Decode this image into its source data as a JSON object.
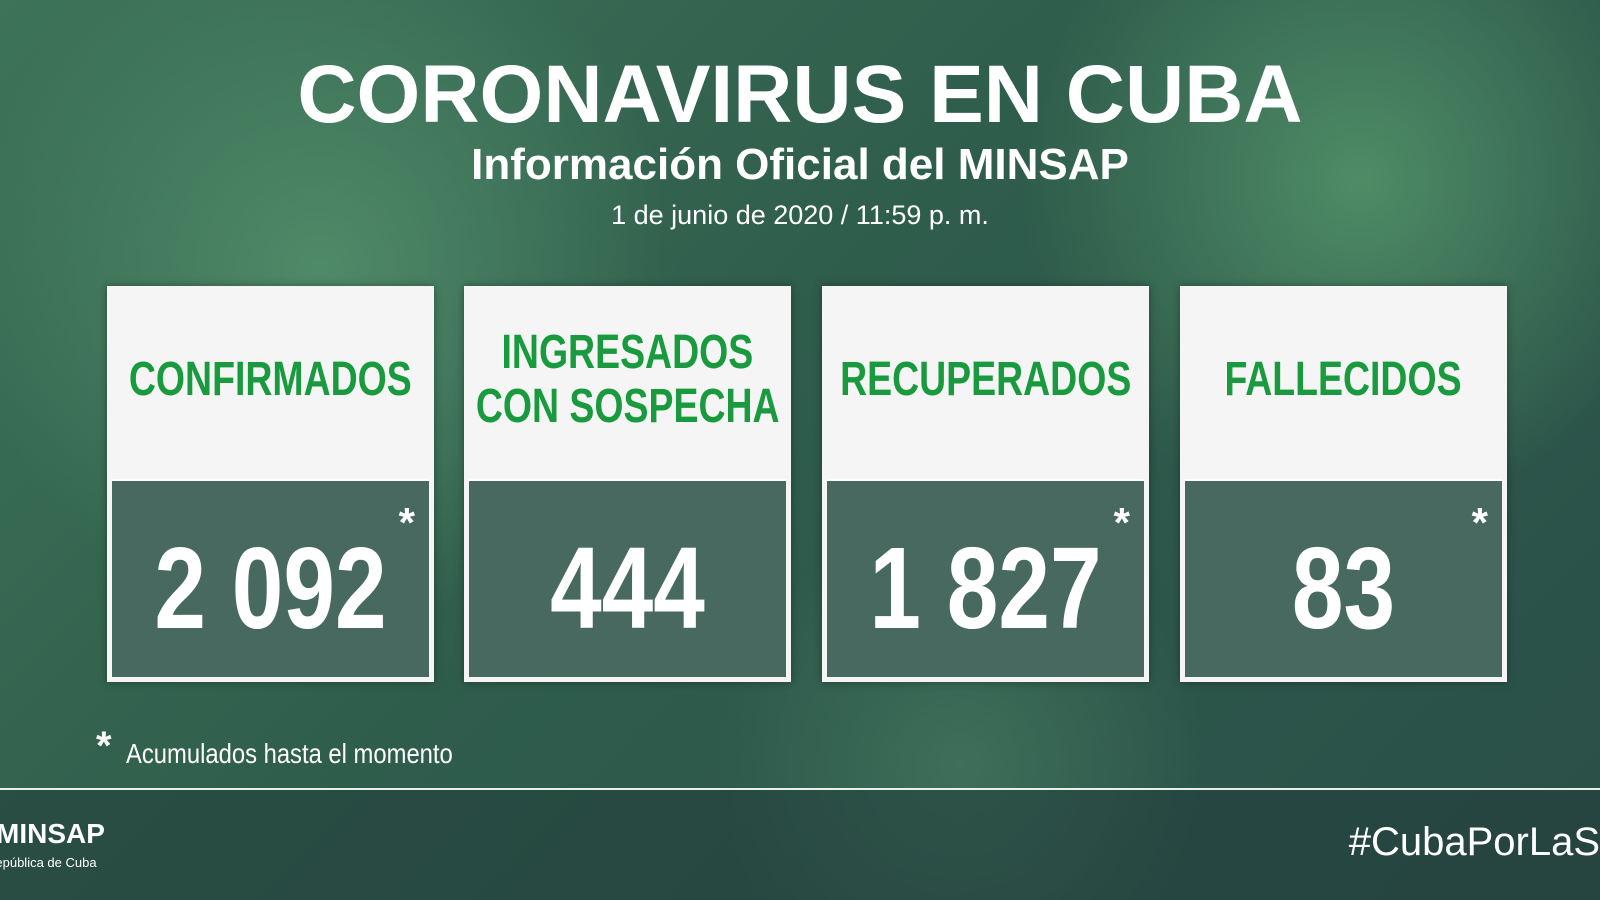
{
  "header": {
    "title": "CORONAVIRUS EN CUBA",
    "subtitle": "Información Oficial del MINSAP",
    "date": "1 de junio de 2020 / 11:59 p. m."
  },
  "cards": [
    {
      "label_lines": [
        "CONFIRMADOS"
      ],
      "value": "2 092",
      "asterisk": "*"
    },
    {
      "label_lines": [
        "INGRESADOS",
        "CON SOSPECHA"
      ],
      "value": "444"
    },
    {
      "label_lines": [
        "RECUPERADOS"
      ],
      "value": "1 827",
      "asterisk": "*"
    },
    {
      "label_lines": [
        "FALLECIDOS"
      ],
      "value": "83",
      "asterisk": "*"
    }
  ],
  "footnote": {
    "asterisk": "*",
    "text": "Acumulados hasta el momento"
  },
  "footer": {
    "logo": "MINSAP",
    "logo_sub": "República de Cuba",
    "hashtag": "#CubaPorLaS"
  }
}
